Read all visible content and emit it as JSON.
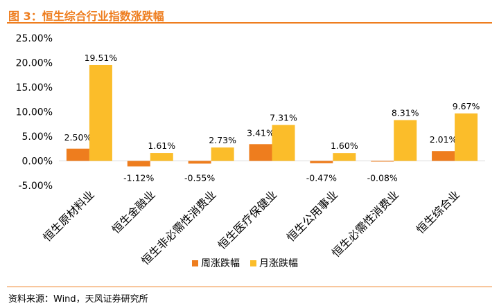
{
  "figure_title": "图 3：恒生综合行业指数涨跌幅",
  "source": "资料来源：Wind，天风证券研究所",
  "colors": {
    "accent": "#ee7d1e",
    "week": "#ee7d1e",
    "month": "#fbbd2a"
  },
  "chart_data": {
    "type": "bar",
    "categories": [
      "恒生原材料业",
      "恒生金融业",
      "恒生非必需性消费业",
      "恒生医疗保健业",
      "恒生公用事业",
      "恒生必需性消费业",
      "恒生综合业"
    ],
    "series": [
      {
        "name": "周涨跌幅",
        "values": [
          2.5,
          -1.12,
          -0.55,
          3.41,
          -0.47,
          -0.08,
          2.01
        ],
        "labels": [
          "2.50%",
          "-1.12%",
          "-0.55%",
          "3.41%",
          "-0.47%",
          "-0.08%",
          "2.01%"
        ]
      },
      {
        "name": "月涨跌幅",
        "values": [
          19.51,
          1.61,
          2.73,
          7.31,
          1.6,
          8.31,
          9.67
        ],
        "labels": [
          "19.51%",
          "1.61%",
          "2.73%",
          "7.31%",
          "1.60%",
          "8.31%",
          "9.67%"
        ]
      }
    ],
    "yticks": [
      "25.00%",
      "20.00%",
      "15.00%",
      "10.00%",
      "5.00%",
      "0.00%",
      "-5.00%"
    ],
    "ylim": [
      -5,
      25
    ],
    "legend_position": "bottom",
    "grid": false
  }
}
